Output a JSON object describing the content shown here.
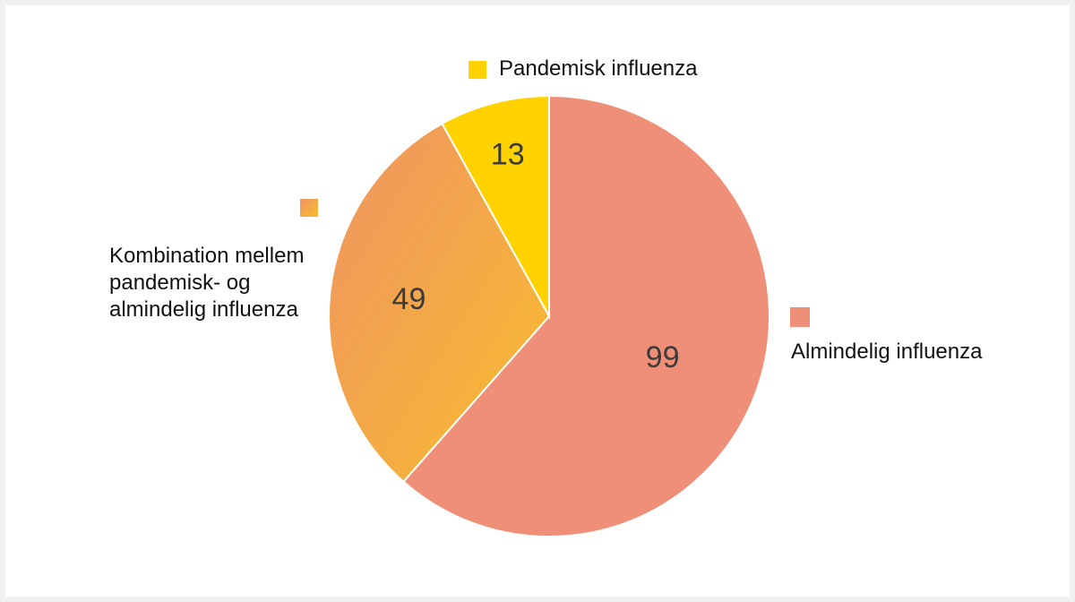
{
  "chart_data": {
    "type": "pie",
    "slices": [
      {
        "label": "Almindelig influenza",
        "value": 99,
        "color": "#ef8f78"
      },
      {
        "label": "Kombination mellem\npandemisk- og\nalmindelig influenza",
        "value": 49,
        "color_start": "#ef9362",
        "color_end": "#f8bd2e"
      },
      {
        "label": "Pandemisk influenza",
        "value": 13,
        "color": "#ffd200"
      }
    ],
    "start_angle_degrees": 0,
    "direction": "clockwise",
    "legend_placement": "beside slices"
  }
}
